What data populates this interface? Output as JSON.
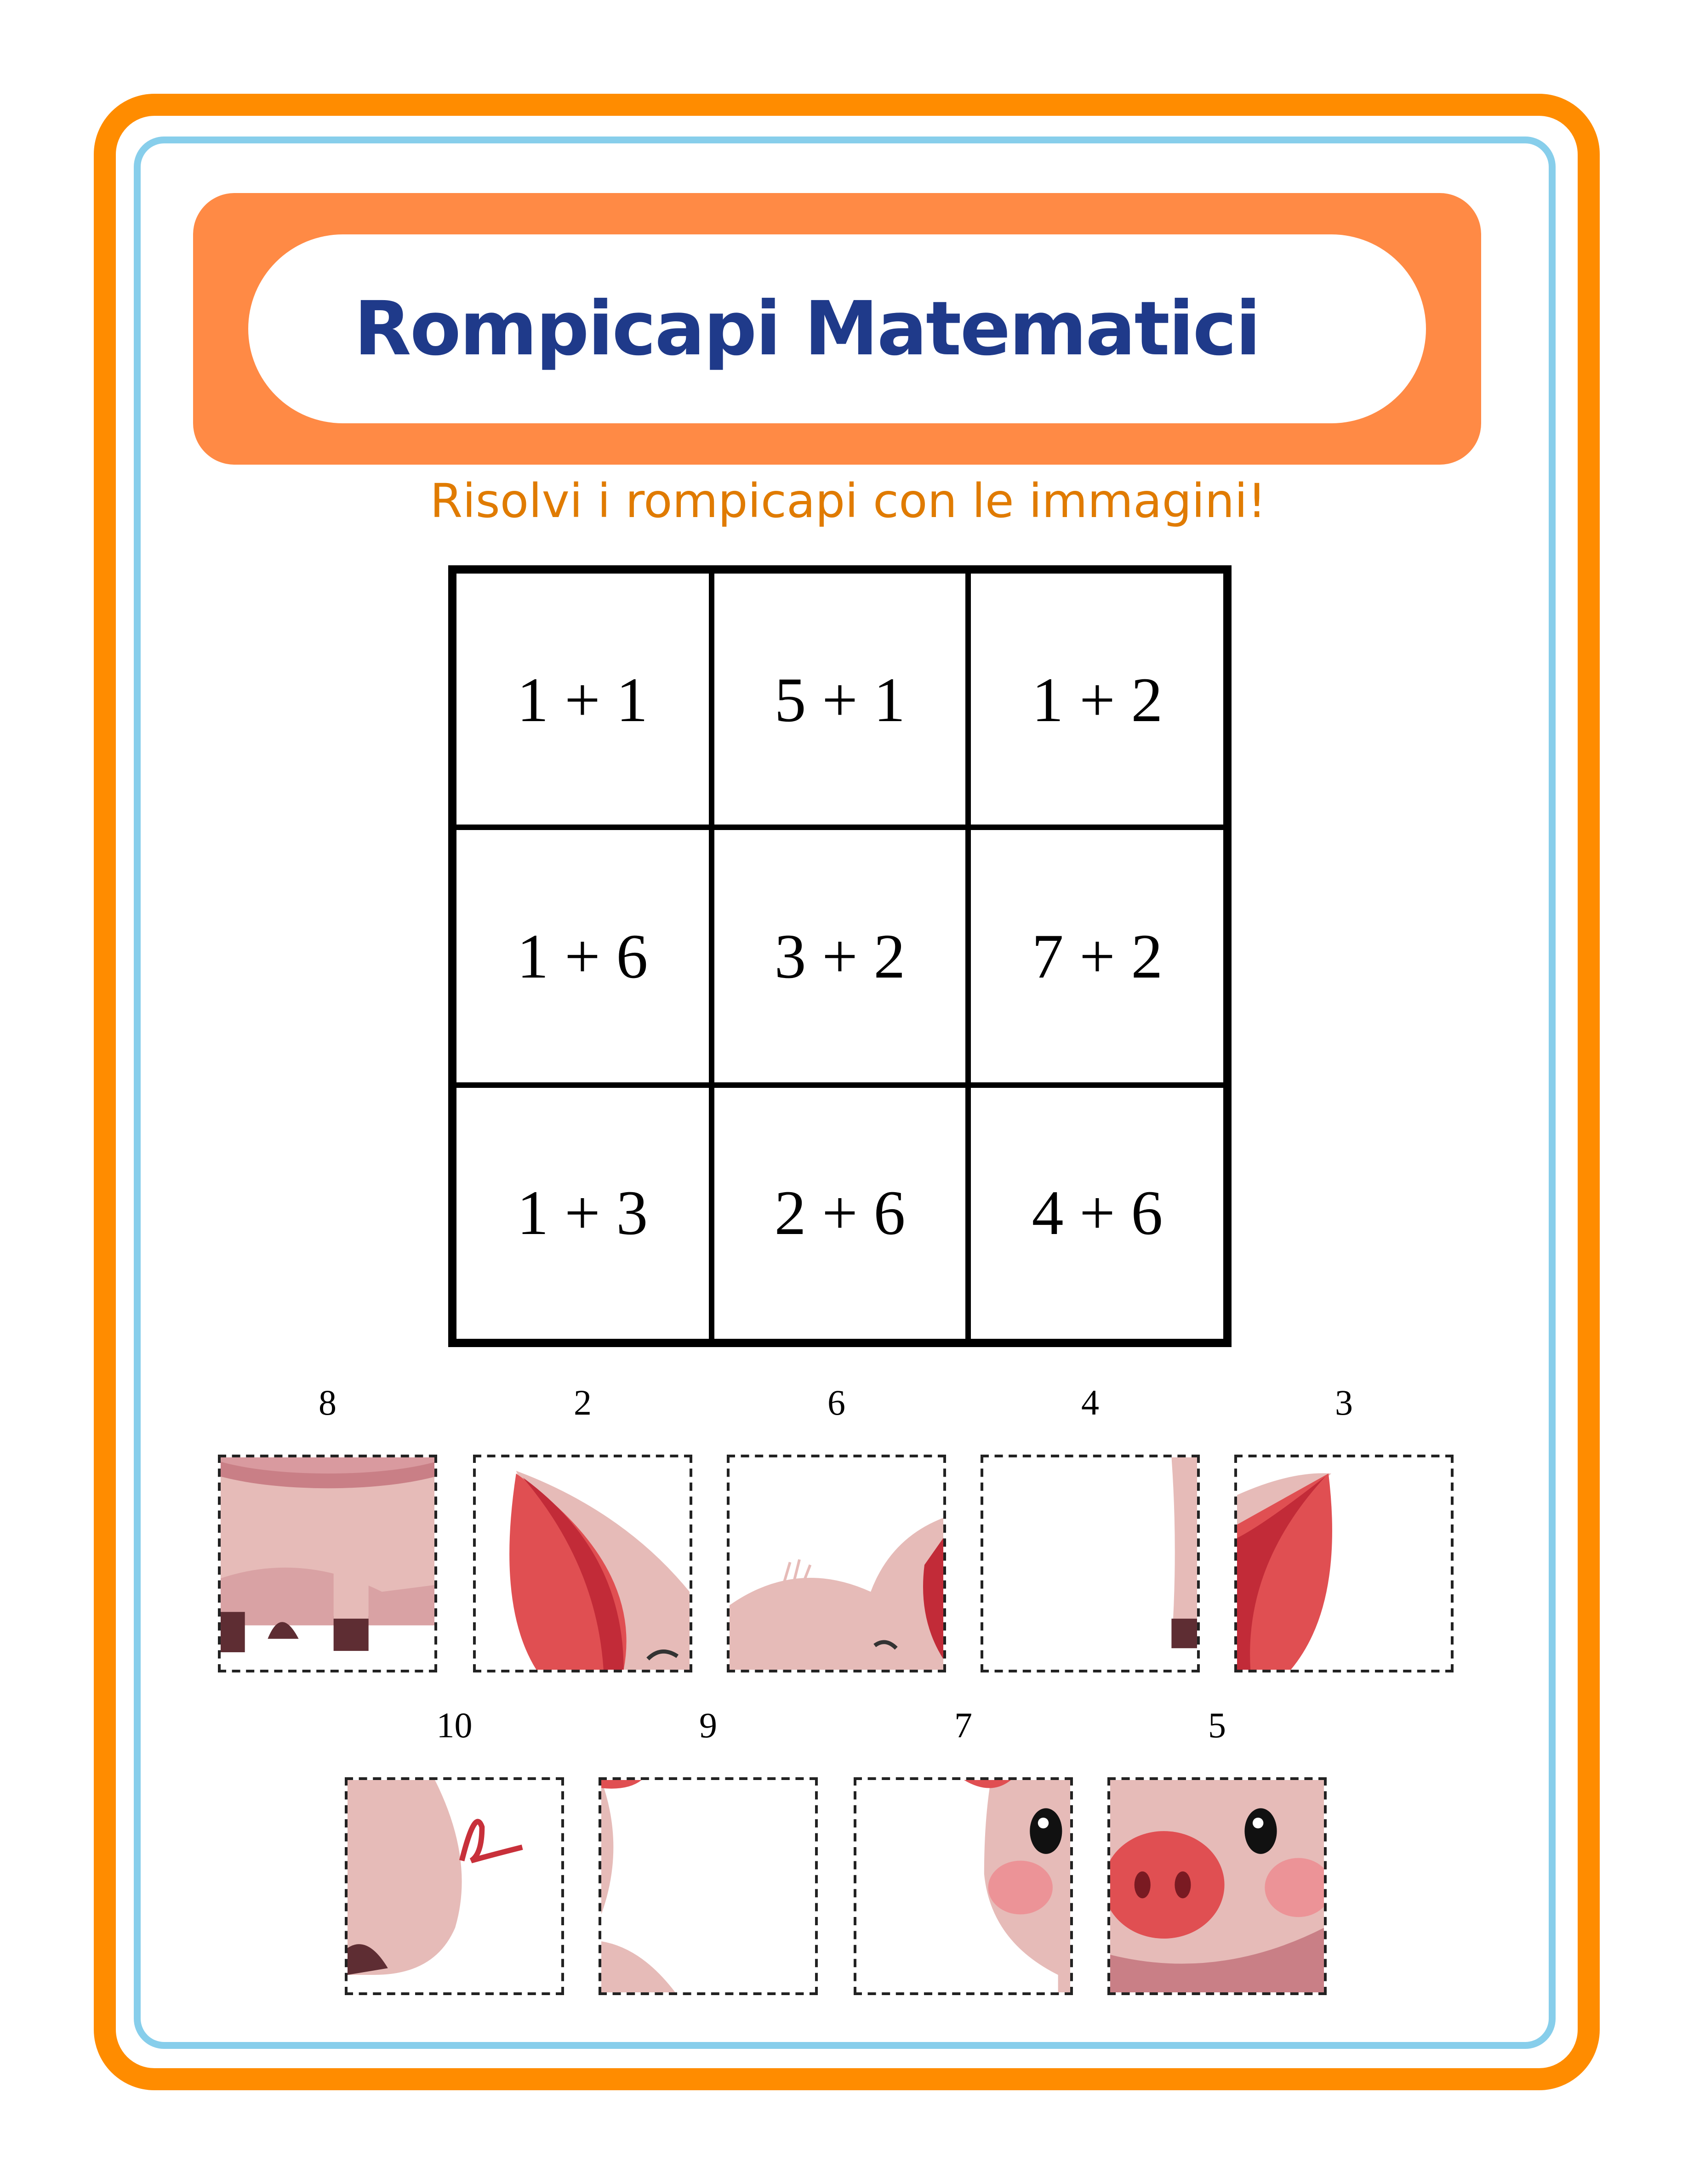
{
  "header": {
    "title": "Rompicapi Matematici",
    "subtitle": "Risolvi i rompicapi con le immagini!"
  },
  "colors": {
    "outer_border": "#FF8C00",
    "inner_border": "#87CEEB",
    "header_band": "#FF8A45",
    "title": "#1F3A8A",
    "subtitle": "#E07B00",
    "pig_pink": "#E6BBB8",
    "pig_red": "#E04F52"
  },
  "grid": [
    [
      "1 + 1",
      "5 + 1",
      "1 + 2"
    ],
    [
      "1 + 6",
      "3 + 2",
      "7 + 2"
    ],
    [
      "1 + 3",
      "2 + 6",
      "4 + 6"
    ]
  ],
  "pieces": {
    "row1": [
      {
        "label": "8",
        "content": "pig-legs"
      },
      {
        "label": "2",
        "content": "pig-left-ear"
      },
      {
        "label": "6",
        "content": "pig-head-top"
      },
      {
        "label": "4",
        "content": "pig-leg-edge"
      },
      {
        "label": "3",
        "content": "pig-right-ear"
      }
    ],
    "row2": [
      {
        "label": "10",
        "content": "pig-tail"
      },
      {
        "label": "9",
        "content": "pig-body-edge"
      },
      {
        "label": "7",
        "content": "pig-eye-cheek"
      },
      {
        "label": "5",
        "content": "pig-snout"
      }
    ]
  }
}
